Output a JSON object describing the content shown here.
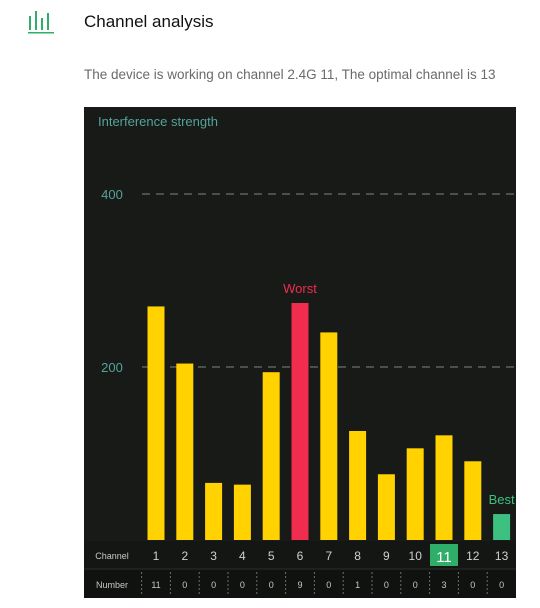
{
  "header": {
    "title": "Channel analysis",
    "logo_icon": "bar-chart-icon",
    "accent": "#2fae6a"
  },
  "description": "The device is working on channel 2.4G 11, The optimal channel is 13",
  "chart_data": {
    "type": "bar",
    "title": "Interference strength",
    "y_ticks": [
      200,
      400
    ],
    "ylim": [
      0,
      470
    ],
    "row_labels": {
      "channel": "Channel",
      "number": "Number"
    },
    "categories": [
      "1",
      "2",
      "3",
      "4",
      "5",
      "6",
      "7",
      "8",
      "9",
      "10",
      "11",
      "12",
      "13"
    ],
    "values": [
      270,
      204,
      66,
      64,
      194,
      274,
      240,
      126,
      76,
      106,
      121,
      91,
      30
    ],
    "numbers": [
      "11",
      "0",
      "0",
      "0",
      "0",
      "9",
      "0",
      "1",
      "0",
      "0",
      "3",
      "0",
      "0"
    ],
    "worst": {
      "index": 5,
      "label": "Worst"
    },
    "best": {
      "index": 12,
      "label": "Best"
    },
    "current": {
      "index": 10
    },
    "colors": {
      "normal": "#ffd200",
      "worst": "#f02d4f",
      "best": "#3cc180",
      "grid": "#5c625c",
      "tick": "#56a39a",
      "selected": "#2fae6a"
    }
  }
}
